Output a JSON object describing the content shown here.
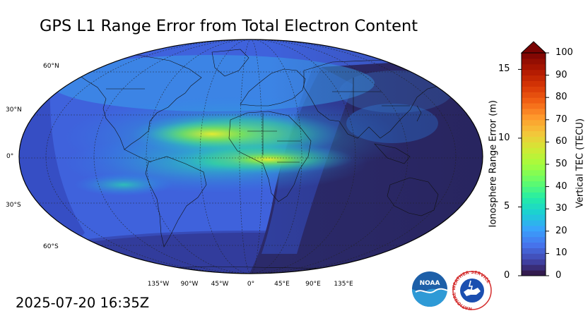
{
  "title": "GPS L1 Range Error from Total Electron Content",
  "timestamp": "2025-07-20 16:35Z",
  "map": {
    "latitude_labels": [
      {
        "text": "60°N",
        "lat": 60
      },
      {
        "text": "30°N",
        "lat": 30
      },
      {
        "text": "0°",
        "lat": 0
      },
      {
        "text": "30°S",
        "lat": -30
      },
      {
        "text": "60°S",
        "lat": -60
      }
    ],
    "longitude_labels": [
      {
        "text": "135°W",
        "lon": -135
      },
      {
        "text": "90°W",
        "lon": -90
      },
      {
        "text": "45°W",
        "lon": -45
      },
      {
        "text": "0°",
        "lon": 0
      },
      {
        "text": "45°E",
        "lon": 45
      },
      {
        "text": "90°E",
        "lon": 90
      },
      {
        "text": "135°E",
        "lon": 135
      }
    ]
  },
  "colorbar": {
    "left_axis_label": "Ionosphere Range Error (m)",
    "right_axis_label": "Vertical TEC (TECU)",
    "left_ticks": [
      "0",
      "5",
      "10",
      "15"
    ],
    "right_ticks": [
      "0",
      "10",
      "20",
      "30",
      "40",
      "50",
      "60",
      "70",
      "80",
      "90",
      "100"
    ],
    "range_error_per_tecu": 0.162,
    "tec_max": 100,
    "extend": "max"
  },
  "logos": {
    "noaa_text": "NOAA",
    "nws_text": "NATIONAL WEATHER SERVICE"
  }
}
